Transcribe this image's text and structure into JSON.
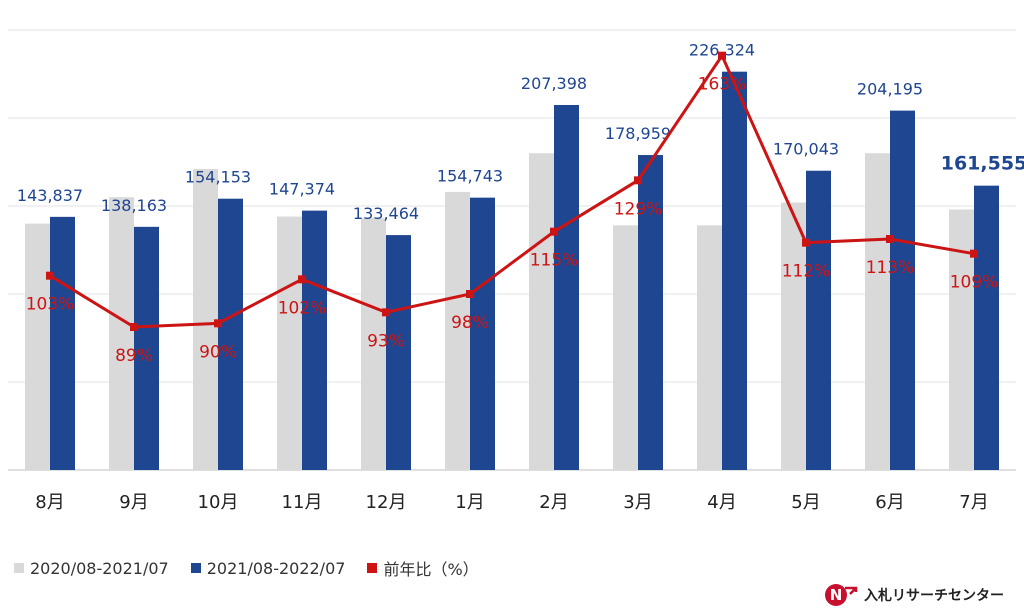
{
  "chart_data": {
    "type": "bar",
    "categories": [
      "8月",
      "9月",
      "10月",
      "11月",
      "12月",
      "1月",
      "2月",
      "3月",
      "4月",
      "5月",
      "6月",
      "7月"
    ],
    "series": [
      {
        "name": "2020/08-2021/07",
        "type": "bar",
        "color": "#d9d9d9",
        "values": [
          140000,
          155000,
          171000,
          144000,
          143000,
          158000,
          180000,
          139000,
          139000,
          152000,
          180000,
          148000
        ]
      },
      {
        "name": "2021/08-2022/07",
        "type": "bar",
        "color": "#1f4690",
        "values": [
          143837,
          138163,
          154153,
          147374,
          133464,
          154743,
          207398,
          178959,
          226324,
          170043,
          204195,
          161555
        ],
        "labels": [
          "143,837",
          "138,163",
          "154,153",
          "147,374",
          "133,464",
          "154,743",
          "207,398",
          "178,959",
          "226,324",
          "170,043",
          "204,195",
          "161,555"
        ],
        "highlight_last": true
      },
      {
        "name": "前年比（%）",
        "type": "line",
        "color": "#cc1414",
        "values": [
          103,
          89,
          90,
          102,
          93,
          98,
          115,
          129,
          163,
          112,
          113,
          109
        ],
        "labels": [
          "103%",
          "89%",
          "90%",
          "102%",
          "93%",
          "98%",
          "115%",
          "129%",
          "163%",
          "112%",
          "113%",
          "109%"
        ]
      }
    ],
    "ylim": [
      0,
      250000
    ],
    "y2lim": [
      50,
      170
    ],
    "grid": true,
    "legend_position": "bottom-left"
  },
  "legend": [
    {
      "label": "2020/08-2021/07",
      "color": "#d9d9d9"
    },
    {
      "label": "2021/08-2022/07",
      "color": "#1f4690"
    },
    {
      "label": "前年比（%）",
      "color": "#cc1414"
    }
  ],
  "brand": {
    "name": "入札リサーチセンター",
    "logo_letter": "N"
  }
}
